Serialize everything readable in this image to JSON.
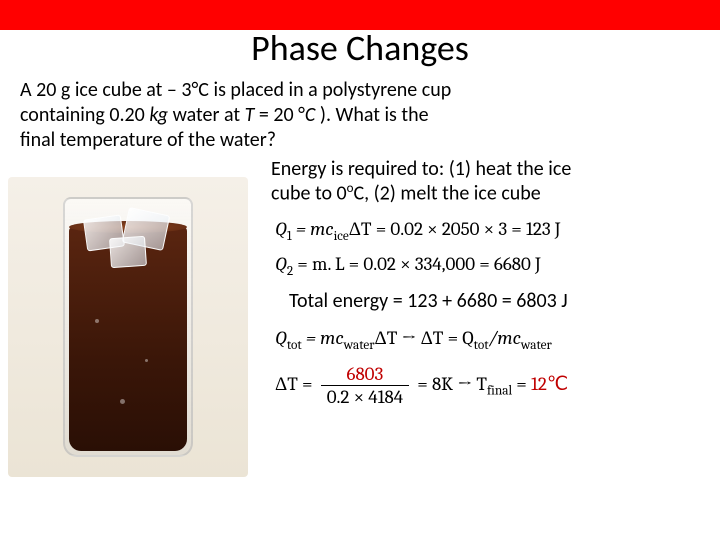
{
  "colors": {
    "top_bar": "#ff0000",
    "background": "#ffffff",
    "text": "#000000",
    "accent_red": "#c00000"
  },
  "title": "Phase Changes",
  "problem_line1": "A 20 g ice cube at – 3°C is placed in a polystyrene cup",
  "problem_line2_a": "containing 0.20 ",
  "problem_line2_kg": "kg",
  "problem_line2_b": " water at ",
  "problem_line2_c": "T",
  "problem_line2_d": " =  20 °",
  "problem_line2_e": "C",
  "problem_line2_f": " ). What is the",
  "problem_line3": "final temperature of the water?",
  "energy_text_1": "Energy is required to: (1) heat the ice",
  "energy_text_2a": "cube to 0",
  "energy_text_2b": "C, (2) melt the ice cube",
  "eq1_lhs": "Q",
  "eq1_sub": "1",
  "eq1_a": " = mc",
  "eq1_ice": "ice",
  "eq1_b": "ΔT = 0.02 × 2050 × 3 = 123 J",
  "eq2_lhs": "Q",
  "eq2_sub": "2",
  "eq2_a": " = m. L = 0.02 × 334,000 = 6680 J",
  "total": "Total energy = 123 + 6680 = 6803 J",
  "eq3_a": "Q",
  "eq3_tot": "tot",
  "eq3_b": " = mc",
  "eq3_water": "water",
  "eq3_c": "ΔT → ΔT = Q",
  "eq3_d": "/mc",
  "eq4_dt": "ΔT = ",
  "eq4_num": "6803",
  "eq4_den": "0.2 × 4184",
  "eq4_a": " = 8K → T",
  "eq4_final": "final",
  "eq4_b": " = ",
  "eq4_val": "12℃"
}
